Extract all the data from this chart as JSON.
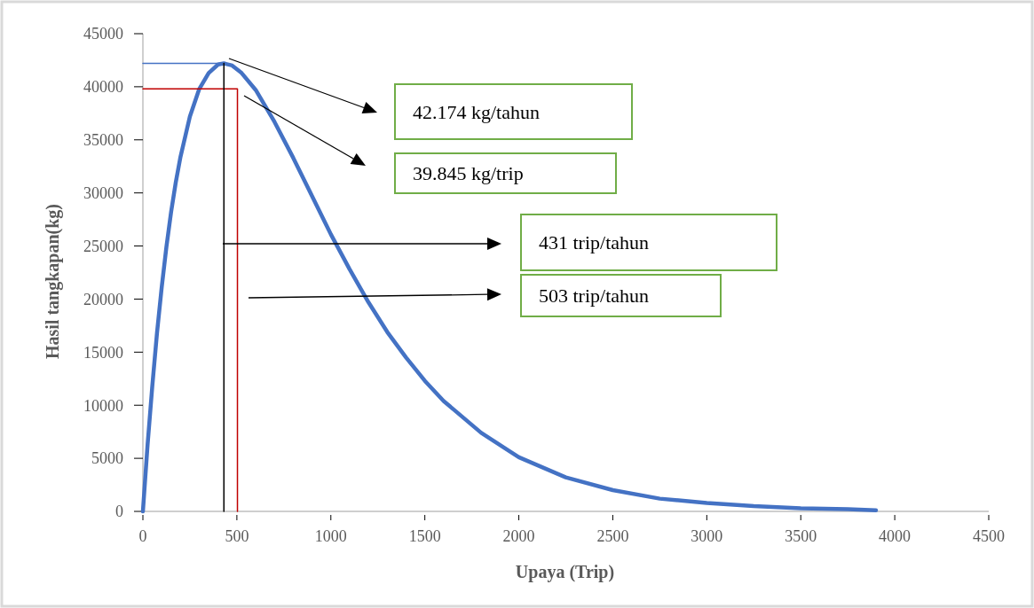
{
  "chart_data": {
    "type": "line",
    "xlabel": "Upaya (Trip)",
    "ylabel": "Hasil tangkapan(kg)",
    "xlim": [
      0,
      4500
    ],
    "xticks": [
      0,
      500,
      1000,
      1500,
      2000,
      2500,
      3000,
      3500,
      4000,
      4500
    ],
    "ylim": [
      0,
      45000
    ],
    "yticks": [
      0,
      5000,
      10000,
      15000,
      20000,
      25000,
      30000,
      35000,
      40000,
      45000
    ],
    "marker": "none",
    "line_style": "solid",
    "series": [
      {
        "color": "#4472c4",
        "x": [
          0,
          25,
          50,
          75,
          100,
          125,
          150,
          175,
          200,
          250,
          300,
          350,
          400,
          431,
          475,
          525,
          600,
          700,
          800,
          900,
          1000,
          1100,
          1200,
          1300,
          1400,
          1500,
          1600,
          1800,
          2000,
          2250,
          2500,
          2750,
          3000,
          3250,
          3500,
          3750,
          3900
        ],
        "values": [
          0,
          6300,
          11800,
          16800,
          21100,
          24900,
          28200,
          31000,
          33400,
          37200,
          39800,
          41300,
          42100,
          42200,
          42000,
          41300,
          39700,
          36700,
          33300,
          29700,
          26100,
          22800,
          19700,
          16900,
          14500,
          12300,
          10400,
          7400,
          5100,
          3200,
          2000,
          1200,
          800,
          500,
          300,
          200,
          100
        ]
      },
      {
        "color": "#4472c4",
        "x": [
          0,
          431
        ],
        "values": [
          42200,
          42200
        ]
      },
      {
        "color": "#c00000",
        "x": [
          0,
          503,
          503
        ],
        "values": [
          39800,
          39800,
          0
        ]
      },
      {
        "color": "#000000",
        "x": [
          431,
          431
        ],
        "values": [
          42200,
          0
        ]
      }
    ],
    "annotations": [
      "42.174 kg/tahun",
      "39.845 kg/trip",
      "431 trip/tahun",
      "503 trip/tahun"
    ]
  }
}
